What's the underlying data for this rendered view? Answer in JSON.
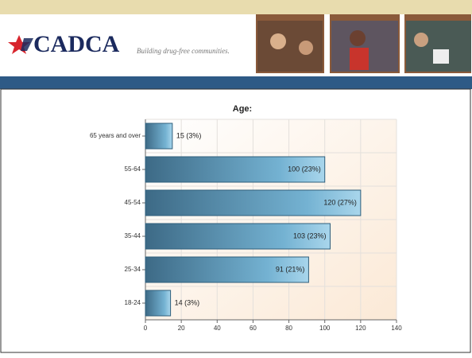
{
  "header": {
    "logo": "CADCA",
    "tagline": "Building drug-free communities."
  },
  "chart_data": {
    "type": "hbar",
    "title": "Age:",
    "categories": [
      "65 years and over",
      "55-64",
      "45-54",
      "35-44",
      "25-34",
      "18-24"
    ],
    "values": [
      15,
      100,
      120,
      103,
      91,
      14
    ],
    "value_labels": [
      "15 (3%)",
      "100 (23%)",
      "120 (27%)",
      "103 (23%)",
      "91 (21%)",
      "14 (3%)"
    ],
    "color": "#5b9fc4",
    "xlim": [
      0,
      140
    ],
    "xticks": [
      0,
      20,
      40,
      60,
      80,
      100,
      120,
      140
    ],
    "grid": true
  }
}
